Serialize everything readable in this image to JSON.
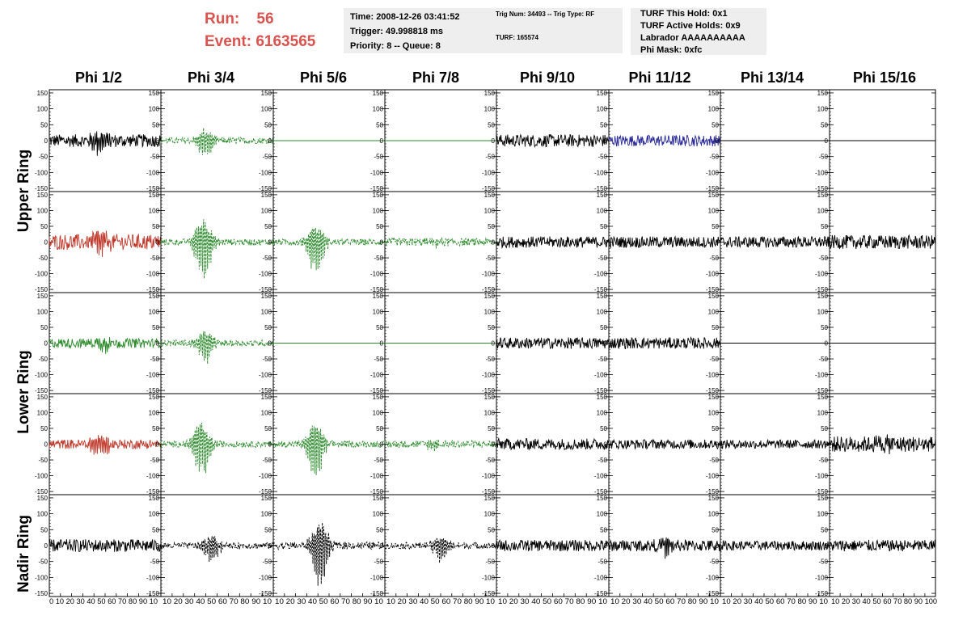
{
  "header": {
    "run_label": "Run:",
    "run_value": "56",
    "event_label": "Event:",
    "event_value": "6163565",
    "time": "Time: 2008-12-26 03:41:52",
    "trigger": "Trigger: 49.998818 ms",
    "priority": "Priority: 8 -- Queue: 8",
    "trig_num": "Trig Num: 34493 -- Trig Type: RF",
    "turf": "TURF: 165574",
    "turf_this_hold": "TURF This Hold: 0x1",
    "turf_active_holds": "TURF Active Holds: 0x9",
    "labrador": "Labrador AAAAAAAAAA",
    "phi_mask": "Phi Mask: 0xfc"
  },
  "columns": [
    "Phi 1/2",
    "Phi 3/4",
    "Phi 5/6",
    "Phi 7/8",
    "Phi 9/10",
    "Phi 11/12",
    "Phi 13/14",
    "Phi 15/16"
  ],
  "row_labels": [
    "Upper Ring",
    "Lower Ring",
    "Nadir Ring"
  ],
  "colors": {
    "black": "#000000",
    "red": "#c0392b",
    "green": "#2a8a2a",
    "blue": "#2a2a9a",
    "header_red": "#d9534f",
    "box_bg": "#eeeeee"
  },
  "chart_data": {
    "type": "line",
    "description_units": "waveform amplitude vs sample index",
    "ylim": [
      -160,
      160
    ],
    "xlim": [
      0,
      100
    ],
    "y_ticks": [
      -150,
      -100,
      -50,
      0,
      50,
      100,
      150
    ],
    "x_ticks": [
      0,
      10,
      20,
      30,
      40,
      50,
      60,
      70,
      80,
      90,
      100
    ],
    "x_tick_labels_text": [
      "0 10 20 30 40 50 60 70 80 90 10",
      "10 20 30 40 50 60 70 80 90 10",
      "10 20 30 40 50 60 70 80 90 10",
      "10 20 30 40 50 60 70 80 90 10",
      "10 20 30 40 50 60 70 80 90 10",
      "10 20 30 40 50 60 70 80 90 10",
      "10 20 30 40 50 60 70 80 90 10",
      "10 20 30 40 50 60 70 80 90 100"
    ],
    "panels": [
      [
        {
          "amp": 20,
          "burst": 45,
          "bamp": 35,
          "color": "black",
          "dash": false,
          "flat": false
        },
        {
          "amp": 10,
          "burst": 40,
          "bamp": 60,
          "color": "green",
          "dash": true,
          "flat": false
        },
        {
          "amp": 0,
          "burst": 0,
          "bamp": 0,
          "color": "green",
          "dash": false,
          "flat": true
        },
        {
          "amp": 0,
          "burst": 0,
          "bamp": 0,
          "color": "green",
          "dash": false,
          "flat": true
        },
        {
          "amp": 20,
          "burst": 0,
          "bamp": 0,
          "color": "black",
          "dash": false,
          "flat": false
        },
        {
          "amp": 18,
          "burst": 0,
          "bamp": 0,
          "color": "blue",
          "dash": false,
          "flat": false
        },
        {
          "amp": 0,
          "burst": 0,
          "bamp": 0,
          "color": "black",
          "dash": false,
          "flat": true
        },
        {
          "amp": 0,
          "burst": 0,
          "bamp": 0,
          "color": "black",
          "dash": false,
          "flat": true
        }
      ],
      [
        {
          "amp": 25,
          "burst": 45,
          "bamp": 45,
          "color": "red",
          "dash": false,
          "flat": false
        },
        {
          "amp": 10,
          "burst": 38,
          "bamp": 130,
          "color": "green",
          "dash": true,
          "flat": false
        },
        {
          "amp": 10,
          "burst": 38,
          "bamp": 100,
          "color": "green",
          "dash": true,
          "flat": false
        },
        {
          "amp": 12,
          "burst": 45,
          "bamp": 15,
          "color": "green",
          "dash": true,
          "flat": false
        },
        {
          "amp": 18,
          "burst": 0,
          "bamp": 0,
          "color": "black",
          "dash": false,
          "flat": false
        },
        {
          "amp": 18,
          "burst": 0,
          "bamp": 0,
          "color": "black",
          "dash": false,
          "flat": false
        },
        {
          "amp": 18,
          "burst": 0,
          "bamp": 0,
          "color": "black",
          "dash": false,
          "flat": false
        },
        {
          "amp": 22,
          "burst": 0,
          "bamp": 0,
          "color": "black",
          "dash": false,
          "flat": false
        }
      ],
      [
        {
          "amp": 15,
          "burst": 50,
          "bamp": 25,
          "color": "green",
          "dash": false,
          "flat": false
        },
        {
          "amp": 10,
          "burst": 40,
          "bamp": 65,
          "color": "green",
          "dash": true,
          "flat": false
        },
        {
          "amp": 0,
          "burst": 0,
          "bamp": 0,
          "color": "green",
          "dash": false,
          "flat": true
        },
        {
          "amp": 0,
          "burst": 0,
          "bamp": 0,
          "color": "green",
          "dash": false,
          "flat": true
        },
        {
          "amp": 18,
          "burst": 0,
          "bamp": 0,
          "color": "black",
          "dash": false,
          "flat": false
        },
        {
          "amp": 18,
          "burst": 0,
          "bamp": 0,
          "color": "black",
          "dash": false,
          "flat": false
        },
        {
          "amp": 0,
          "burst": 0,
          "bamp": 0,
          "color": "black",
          "dash": false,
          "flat": true
        },
        {
          "amp": 0,
          "burst": 0,
          "bamp": 0,
          "color": "black",
          "dash": false,
          "flat": true
        }
      ],
      [
        {
          "amp": 15,
          "burst": 45,
          "bamp": 45,
          "color": "red",
          "dash": false,
          "flat": false
        },
        {
          "amp": 10,
          "burst": 36,
          "bamp": 120,
          "color": "green",
          "dash": true,
          "flat": false
        },
        {
          "amp": 10,
          "burst": 38,
          "bamp": 120,
          "color": "green",
          "dash": true,
          "flat": false
        },
        {
          "amp": 12,
          "burst": 45,
          "bamp": 15,
          "color": "green",
          "dash": true,
          "flat": false
        },
        {
          "amp": 18,
          "burst": 0,
          "bamp": 0,
          "color": "black",
          "dash": false,
          "flat": false
        },
        {
          "amp": 15,
          "burst": 0,
          "bamp": 0,
          "color": "black",
          "dash": false,
          "flat": false
        },
        {
          "amp": 14,
          "burst": 0,
          "bamp": 0,
          "color": "black",
          "dash": false,
          "flat": false
        },
        {
          "amp": 25,
          "burst": 50,
          "bamp": 20,
          "color": "black",
          "dash": false,
          "flat": false
        }
      ],
      [
        {
          "amp": 20,
          "burst": 0,
          "bamp": 0,
          "color": "black",
          "dash": false,
          "flat": false
        },
        {
          "amp": 10,
          "burst": 45,
          "bamp": 50,
          "color": "black",
          "dash": true,
          "flat": false
        },
        {
          "amp": 12,
          "burst": 42,
          "bamp": 135,
          "color": "black",
          "dash": true,
          "flat": false
        },
        {
          "amp": 10,
          "burst": 50,
          "bamp": 55,
          "color": "black",
          "dash": true,
          "flat": false
        },
        {
          "amp": 18,
          "burst": 0,
          "bamp": 0,
          "color": "black",
          "dash": false,
          "flat": false
        },
        {
          "amp": 18,
          "burst": 50,
          "bamp": 25,
          "color": "black",
          "dash": false,
          "flat": false
        },
        {
          "amp": 15,
          "burst": 0,
          "bamp": 0,
          "color": "black",
          "dash": false,
          "flat": false
        },
        {
          "amp": 18,
          "burst": 0,
          "bamp": 0,
          "color": "black",
          "dash": false,
          "flat": false
        }
      ]
    ]
  }
}
